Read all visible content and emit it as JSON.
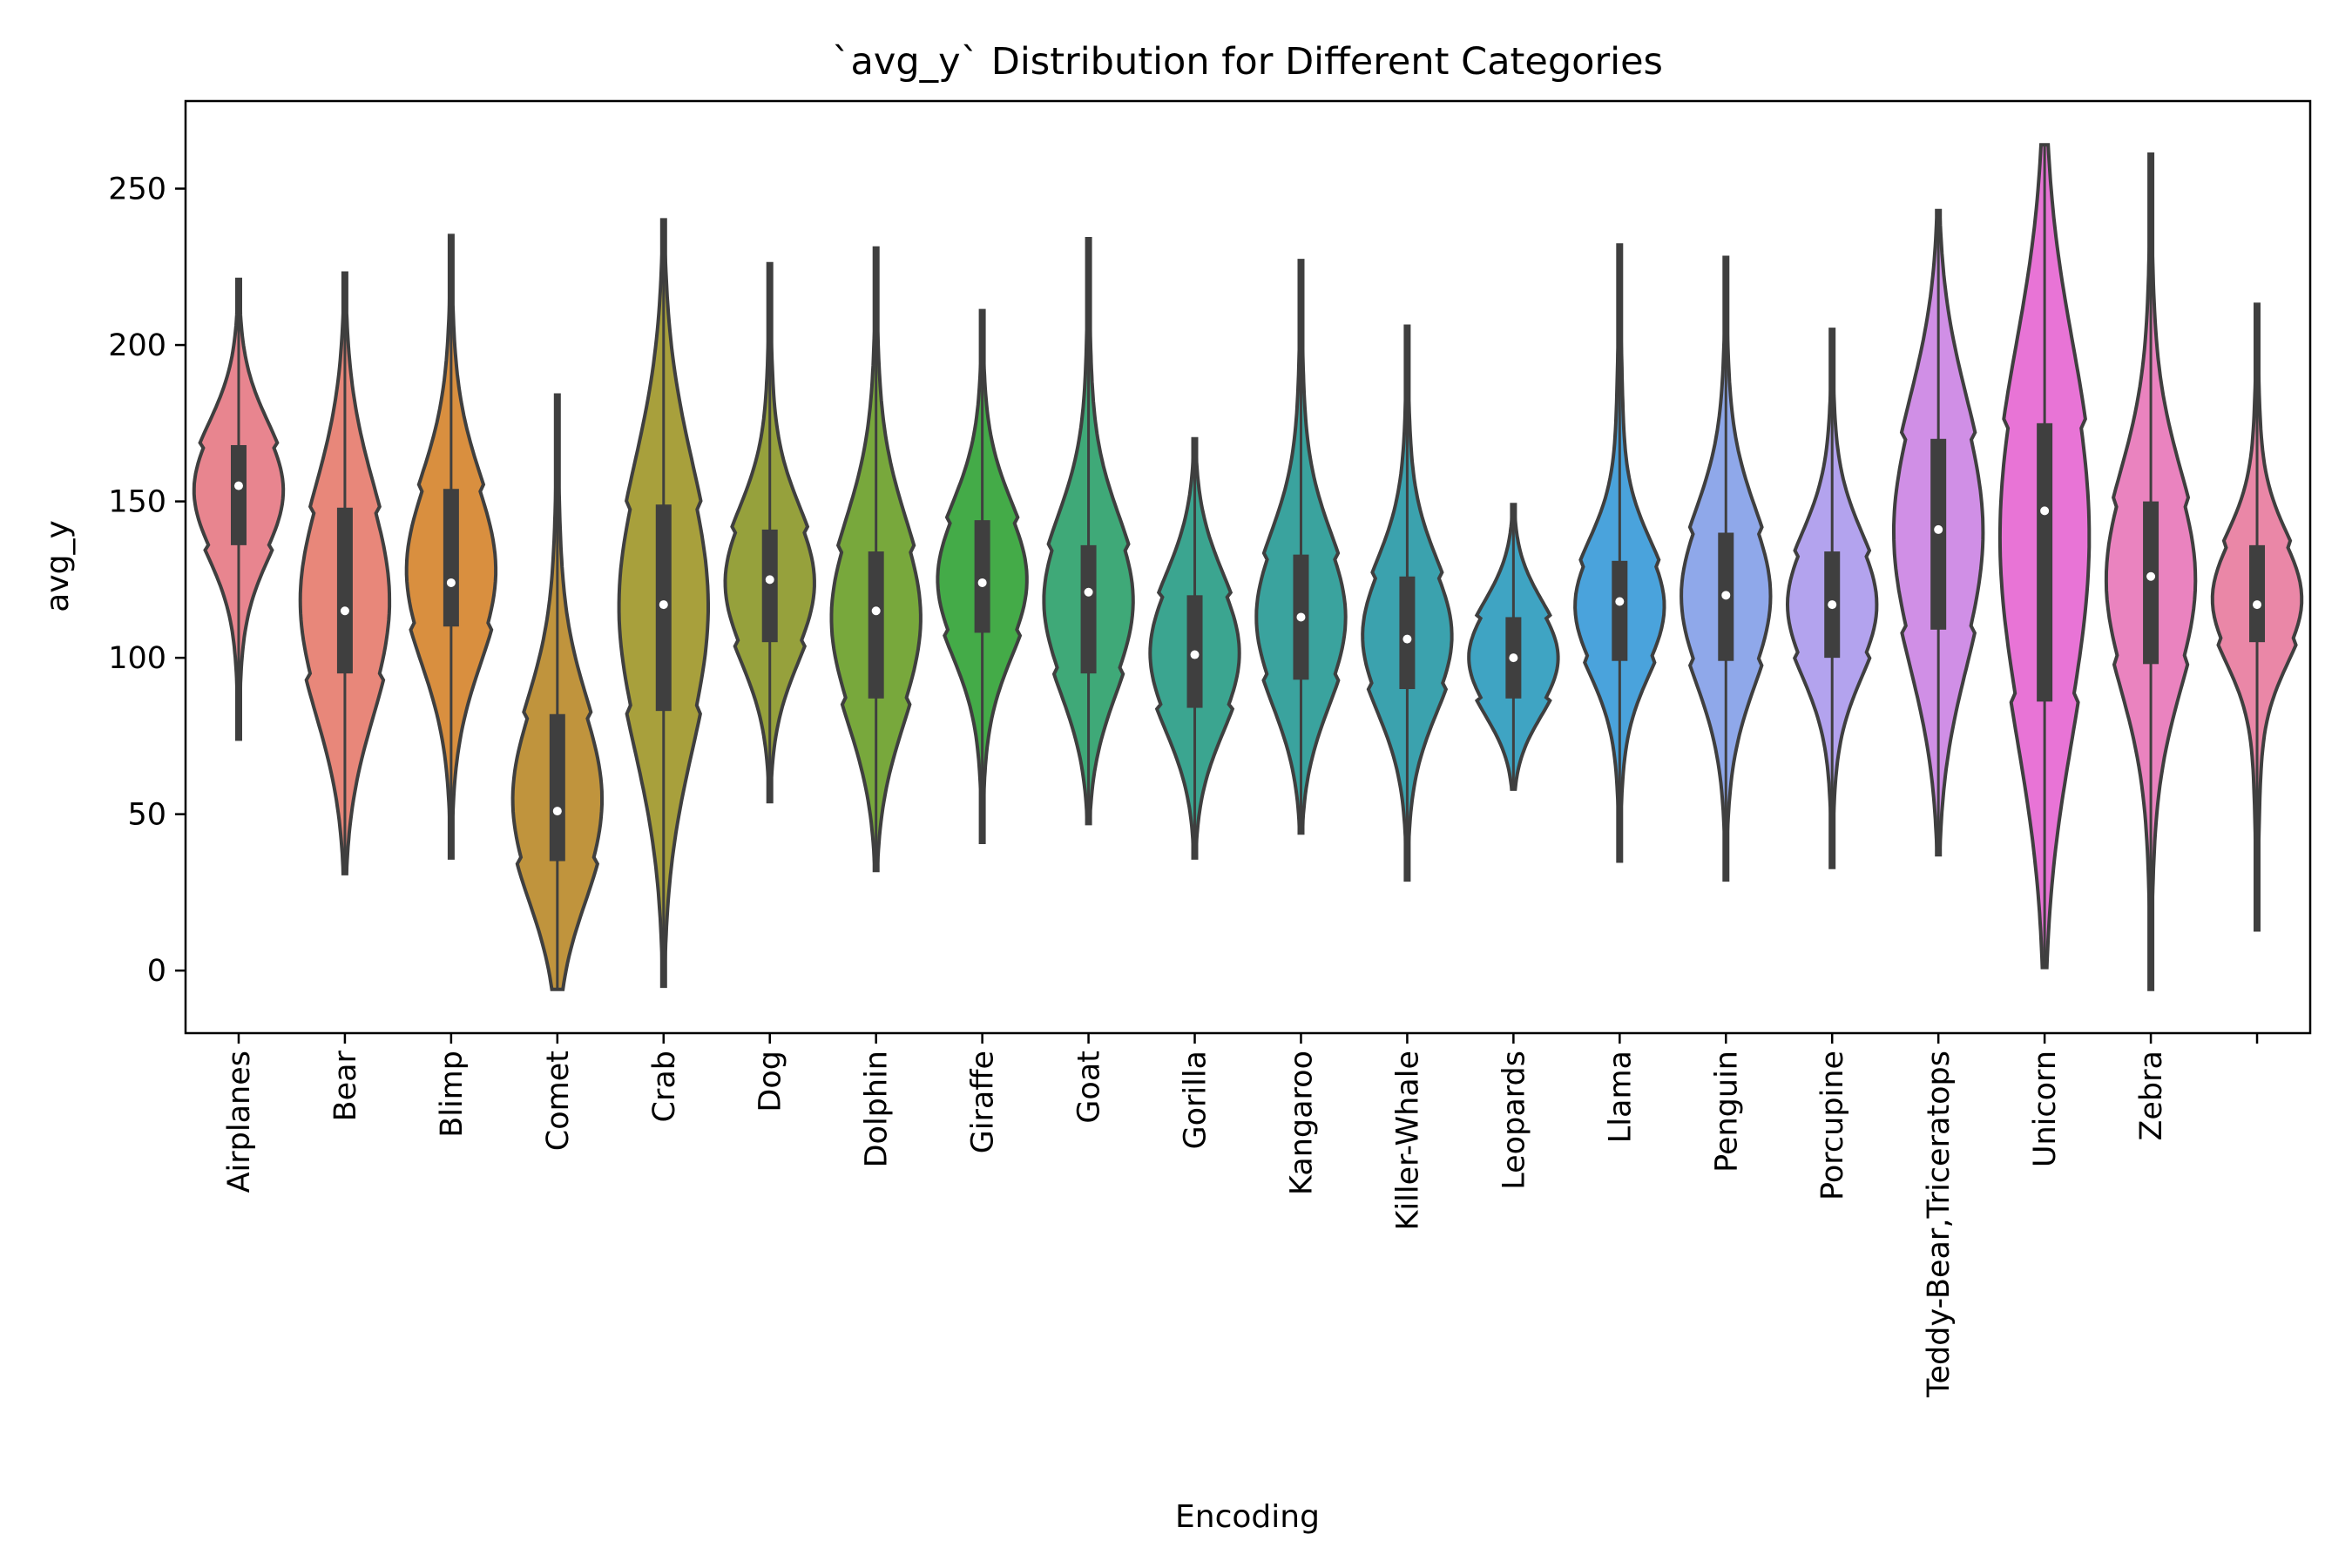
{
  "chart_data": {
    "type": "violin",
    "title": "`avg_y` Distribution for Different Categories",
    "xlabel": "Encoding",
    "ylabel": "avg_y",
    "ylim": [
      -20,
      278
    ],
    "yticks": [
      0,
      50,
      100,
      150,
      200,
      250
    ],
    "grid": false,
    "legend": "none",
    "categories": [
      "Airplanes",
      "Bear",
      "Blimp",
      "Comet",
      "Crab",
      "Dog",
      "Dolphin",
      "Giraffe",
      "Goat",
      "Gorilla",
      "Kangaroo",
      "Killer-Whale",
      "Leopards",
      "Llama",
      "Penguin",
      "Porcupine",
      "Teddy-Bear,Triceratops",
      "Unicorn",
      "Zebra",
      ""
    ],
    "series": [
      {
        "category": "Airplanes",
        "color": "#e8858f",
        "min": 74,
        "q1": 136,
        "median": 155,
        "q3": 168,
        "max": 221
      },
      {
        "category": "Bear",
        "color": "#e8877a",
        "min": 31,
        "q1": 95,
        "median": 115,
        "q3": 148,
        "max": 223
      },
      {
        "category": "Blimp",
        "color": "#d98f3f",
        "min": 36,
        "q1": 110,
        "median": 124,
        "q3": 154,
        "max": 235
      },
      {
        "category": "Comet",
        "color": "#c0943d",
        "min": -6,
        "q1": 35,
        "median": 51,
        "q3": 82,
        "max": 184
      },
      {
        "category": "Crab",
        "color": "#a8a03c",
        "min": -5,
        "q1": 83,
        "median": 117,
        "q3": 149,
        "max": 240
      },
      {
        "category": "Dog",
        "color": "#96a13c",
        "min": 54,
        "q1": 105,
        "median": 125,
        "q3": 141,
        "max": 226
      },
      {
        "category": "Dolphin",
        "color": "#78a83c",
        "min": 32,
        "q1": 87,
        "median": 115,
        "q3": 134,
        "max": 231
      },
      {
        "category": "Giraffe",
        "color": "#44ab48",
        "min": 41,
        "q1": 108,
        "median": 124,
        "q3": 144,
        "max": 211
      },
      {
        "category": "Goat",
        "color": "#3fa978",
        "min": 47,
        "q1": 95,
        "median": 121,
        "q3": 136,
        "max": 234
      },
      {
        "category": "Gorilla",
        "color": "#3ba590",
        "min": 36,
        "q1": 84,
        "median": 101,
        "q3": 120,
        "max": 170
      },
      {
        "category": "Kangaroo",
        "color": "#3aa39e",
        "min": 44,
        "q1": 93,
        "median": 113,
        "q3": 133,
        "max": 227
      },
      {
        "category": "Killer-Whale",
        "color": "#3ba2ae",
        "min": 29,
        "q1": 90,
        "median": 106,
        "q3": 126,
        "max": 206
      },
      {
        "category": "Leopards",
        "color": "#3fa4c3",
        "min": 58,
        "q1": 87,
        "median": 100,
        "q3": 113,
        "max": 149
      },
      {
        "category": "Llama",
        "color": "#4aa3dc",
        "min": 35,
        "q1": 99,
        "median": 118,
        "q3": 131,
        "max": 232
      },
      {
        "category": "Penguin",
        "color": "#8fa8ea",
        "min": 29,
        "q1": 99,
        "median": 120,
        "q3": 140,
        "max": 228
      },
      {
        "category": "Porcupine",
        "color": "#b3a3ee",
        "min": 33,
        "q1": 100,
        "median": 117,
        "q3": 134,
        "max": 205
      },
      {
        "category": "Teddy-Bear,Triceratops",
        "color": "#d08fe6",
        "min": 37,
        "q1": 109,
        "median": 141,
        "q3": 170,
        "max": 243
      },
      {
        "category": "Unicorn",
        "color": "#e874d6",
        "min": 1,
        "q1": 86,
        "median": 147,
        "q3": 175,
        "max": 264
      },
      {
        "category": "Zebra",
        "color": "#ea83bf",
        "min": -6,
        "q1": 98,
        "median": 126,
        "q3": 150,
        "max": 261
      },
      {
        "category": "",
        "color": "#ea87a7",
        "min": 13,
        "q1": 105,
        "median": 117,
        "q3": 136,
        "max": 213
      }
    ]
  }
}
